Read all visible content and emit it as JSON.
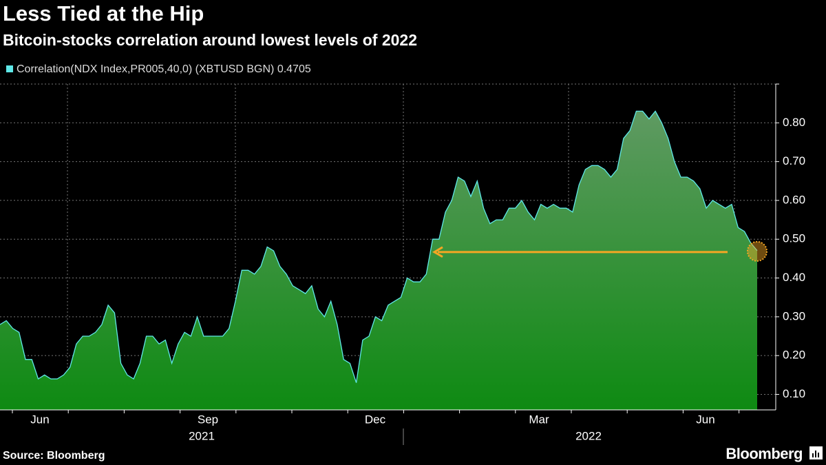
{
  "chart_data": {
    "type": "area",
    "title": "Less Tied at the Hip",
    "subtitle": "Bitcoin-stocks correlation around lowest levels of 2022",
    "series": [
      {
        "name": "Correlation(NDX Index,PR005,40,0) (XBTUSD BGN)",
        "color": "#5fe8e8",
        "values": [
          0.28,
          0.29,
          0.27,
          0.26,
          0.19,
          0.19,
          0.14,
          0.15,
          0.14,
          0.14,
          0.15,
          0.17,
          0.23,
          0.25,
          0.25,
          0.26,
          0.28,
          0.33,
          0.31,
          0.18,
          0.15,
          0.14,
          0.18,
          0.25,
          0.25,
          0.23,
          0.24,
          0.18,
          0.23,
          0.26,
          0.25,
          0.3,
          0.25,
          0.25,
          0.25,
          0.25,
          0.27,
          0.34,
          0.42,
          0.42,
          0.41,
          0.43,
          0.48,
          0.47,
          0.43,
          0.41,
          0.38,
          0.37,
          0.36,
          0.38,
          0.32,
          0.3,
          0.34,
          0.28,
          0.19,
          0.18,
          0.13,
          0.24,
          0.25,
          0.3,
          0.29,
          0.33,
          0.34,
          0.35,
          0.4,
          0.39,
          0.39,
          0.41,
          0.5,
          0.5,
          0.57,
          0.6,
          0.66,
          0.65,
          0.61,
          0.65,
          0.58,
          0.54,
          0.55,
          0.55,
          0.58,
          0.58,
          0.6,
          0.57,
          0.55,
          0.59,
          0.58,
          0.59,
          0.58,
          0.58,
          0.57,
          0.64,
          0.68,
          0.69,
          0.69,
          0.68,
          0.66,
          0.68,
          0.76,
          0.78,
          0.83,
          0.83,
          0.81,
          0.83,
          0.8,
          0.76,
          0.7,
          0.66,
          0.66,
          0.65,
          0.63,
          0.58,
          0.6,
          0.59,
          0.58,
          0.59,
          0.53,
          0.52,
          0.49,
          0.4705
        ]
      }
    ],
    "x_labels": [
      "Jun",
      "Sep",
      "Dec",
      "Mar",
      "Jun"
    ],
    "year_labels": [
      "2021",
      "2022"
    ],
    "ylim": [
      0.06,
      0.9
    ],
    "yticks": [
      {
        "value": 0.1,
        "label": "0.10"
      },
      {
        "value": 0.2,
        "label": "0.20"
      },
      {
        "value": 0.3,
        "label": "0.30"
      },
      {
        "value": 0.4,
        "label": "0.40"
      },
      {
        "value": 0.5,
        "label": "0.50"
      },
      {
        "value": 0.6,
        "label": "0.60"
      },
      {
        "value": 0.7,
        "label": "0.70"
      },
      {
        "value": 0.8,
        "label": "0.80"
      }
    ],
    "grid": true,
    "source": "Source: Bloomberg",
    "brand": "Bloomberg"
  }
}
